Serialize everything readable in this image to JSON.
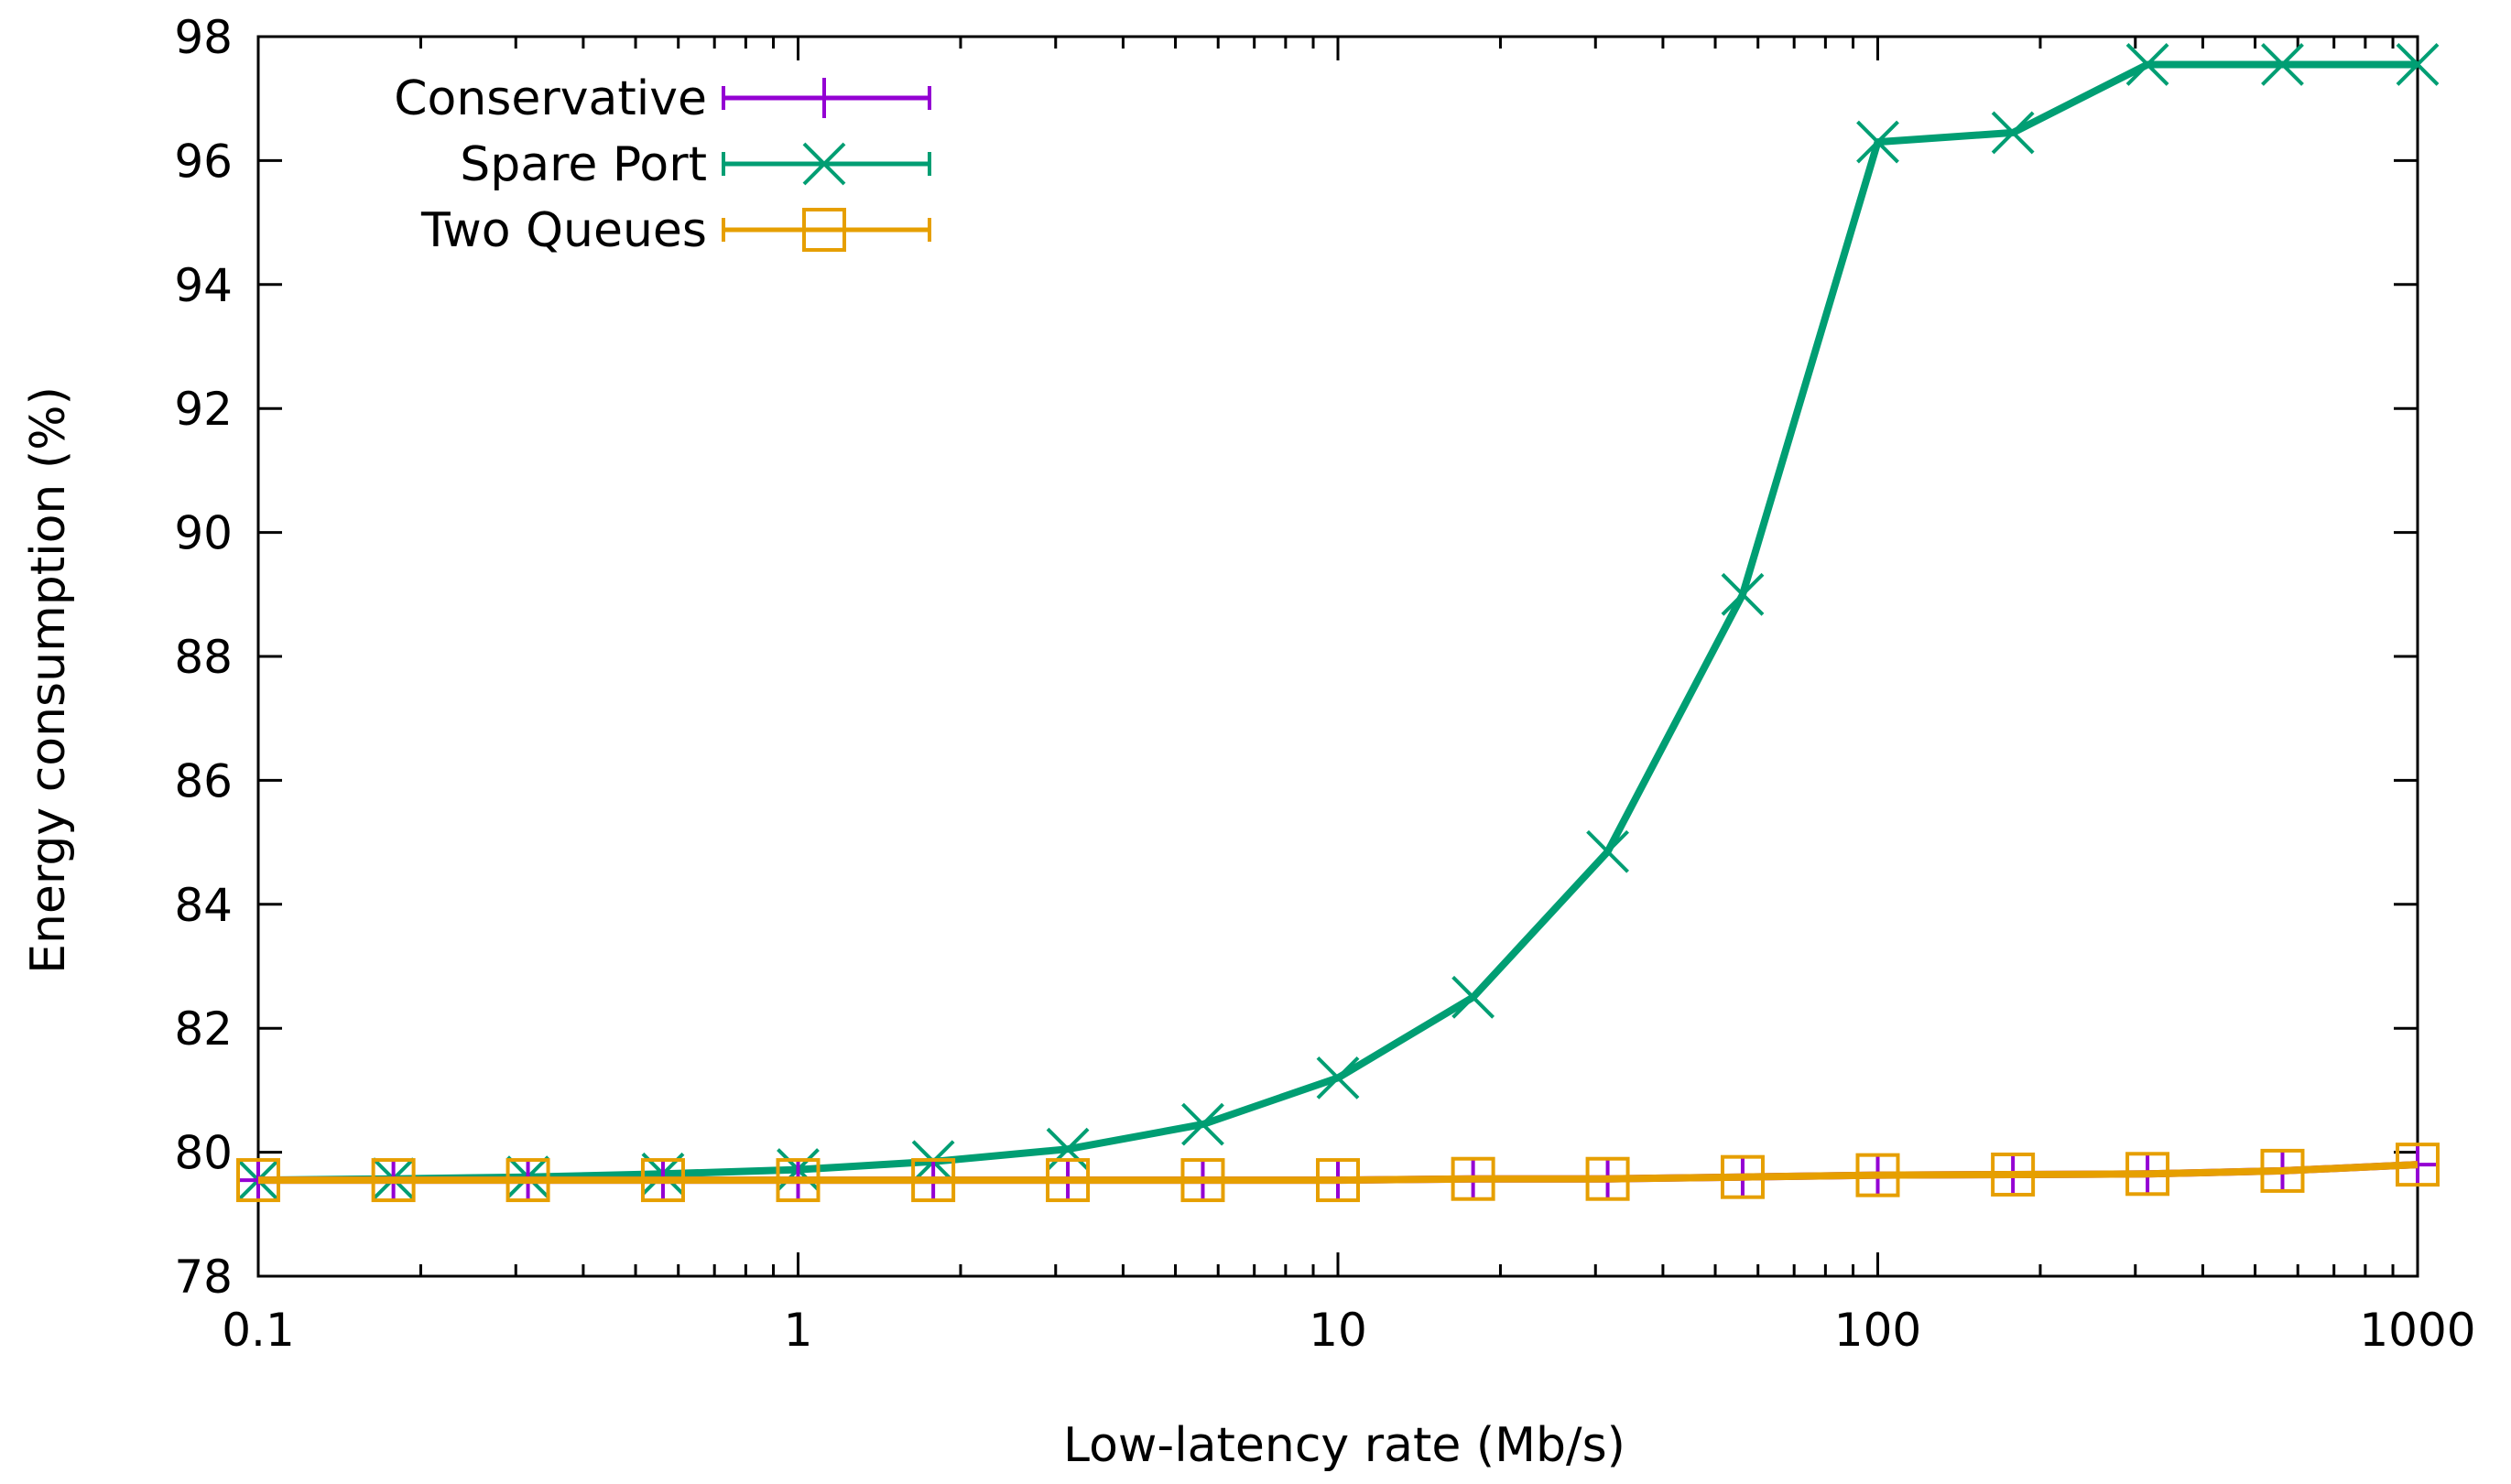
{
  "chart_data": {
    "type": "line",
    "title": "",
    "xlabel": "Low-latency rate (Mb/s)",
    "ylabel": "Energy consumption (%)",
    "xscale": "log",
    "xlim": [
      0.1,
      1000
    ],
    "ylim": [
      78,
      98
    ],
    "xticks": [
      0.1,
      1,
      10,
      100,
      1000
    ],
    "xtick_labels": [
      "0.1",
      "1",
      "10",
      "100",
      "1000"
    ],
    "yticks": [
      78,
      80,
      82,
      84,
      86,
      88,
      90,
      92,
      94,
      96,
      98
    ],
    "ytick_labels": [
      "78",
      "80",
      "82",
      "84",
      "86",
      "88",
      "90",
      "92",
      "94",
      "96",
      "98"
    ],
    "legend_position": "top-left",
    "x": [
      0.1,
      0.178,
      0.316,
      0.562,
      1,
      1.78,
      3.16,
      5.62,
      10,
      17.8,
      31.6,
      56.2,
      100,
      178,
      316,
      562,
      1000
    ],
    "series": [
      {
        "name": "Conservative",
        "color": "#9400d3",
        "marker": "plus",
        "values": [
          79.55,
          79.55,
          79.55,
          79.55,
          79.55,
          79.55,
          79.55,
          79.55,
          79.55,
          79.57,
          79.57,
          79.6,
          79.63,
          79.64,
          79.65,
          79.7,
          79.8
        ]
      },
      {
        "name": "Spare Port",
        "color": "#009e73",
        "marker": "x",
        "values": [
          79.55,
          79.57,
          79.6,
          79.65,
          79.72,
          79.85,
          80.05,
          80.45,
          81.2,
          82.5,
          84.85,
          89.0,
          96.3,
          96.45,
          97.55,
          97.55,
          97.55
        ]
      },
      {
        "name": "Two Queues",
        "color": "#e69f00",
        "marker": "square",
        "values": [
          79.55,
          79.55,
          79.55,
          79.55,
          79.55,
          79.55,
          79.55,
          79.55,
          79.55,
          79.57,
          79.57,
          79.6,
          79.63,
          79.64,
          79.65,
          79.7,
          79.8
        ]
      }
    ]
  }
}
